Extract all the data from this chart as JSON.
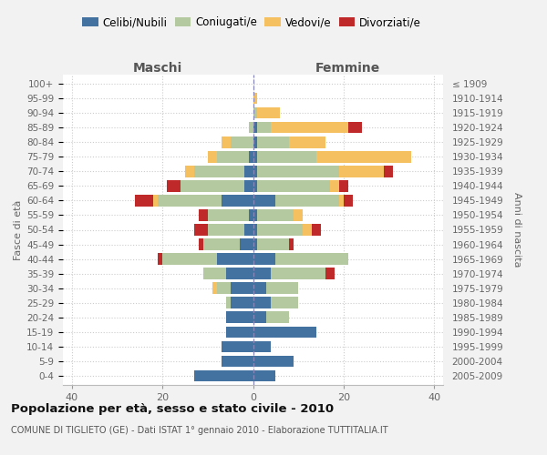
{
  "age_groups": [
    "100+",
    "95-99",
    "90-94",
    "85-89",
    "80-84",
    "75-79",
    "70-74",
    "65-69",
    "60-64",
    "55-59",
    "50-54",
    "45-49",
    "40-44",
    "35-39",
    "30-34",
    "25-29",
    "20-24",
    "15-19",
    "10-14",
    "5-9",
    "0-4"
  ],
  "birth_years": [
    "≤ 1909",
    "1910-1914",
    "1915-1919",
    "1920-1924",
    "1925-1929",
    "1930-1934",
    "1935-1939",
    "1940-1944",
    "1945-1949",
    "1950-1954",
    "1955-1959",
    "1960-1964",
    "1965-1969",
    "1970-1974",
    "1975-1979",
    "1980-1984",
    "1985-1989",
    "1990-1994",
    "1995-1999",
    "2000-2004",
    "2005-2009"
  ],
  "maschi": {
    "celibi": [
      0,
      0,
      0,
      0,
      0,
      1,
      2,
      2,
      7,
      1,
      2,
      3,
      8,
      6,
      5,
      5,
      6,
      6,
      7,
      7,
      13
    ],
    "coniugati": [
      0,
      0,
      0,
      1,
      5,
      7,
      11,
      14,
      14,
      9,
      8,
      8,
      12,
      5,
      3,
      1,
      0,
      0,
      0,
      0,
      0
    ],
    "vedovi": [
      0,
      0,
      0,
      0,
      2,
      2,
      2,
      0,
      1,
      0,
      0,
      0,
      0,
      0,
      1,
      0,
      0,
      0,
      0,
      0,
      0
    ],
    "divorziati": [
      0,
      0,
      0,
      0,
      0,
      0,
      0,
      3,
      4,
      2,
      3,
      1,
      1,
      0,
      0,
      0,
      0,
      0,
      0,
      0,
      0
    ]
  },
  "femmine": {
    "nubili": [
      0,
      0,
      0,
      1,
      1,
      1,
      1,
      1,
      5,
      1,
      1,
      1,
      5,
      4,
      3,
      4,
      3,
      14,
      4,
      9,
      5
    ],
    "coniugate": [
      0,
      0,
      1,
      3,
      7,
      13,
      18,
      16,
      14,
      8,
      10,
      7,
      16,
      12,
      7,
      6,
      5,
      0,
      0,
      0,
      0
    ],
    "vedove": [
      0,
      1,
      5,
      17,
      8,
      21,
      10,
      2,
      1,
      2,
      2,
      0,
      0,
      0,
      0,
      0,
      0,
      0,
      0,
      0,
      0
    ],
    "divorziate": [
      0,
      0,
      0,
      3,
      0,
      0,
      2,
      2,
      2,
      0,
      2,
      1,
      0,
      2,
      0,
      0,
      0,
      0,
      0,
      0,
      0
    ]
  },
  "colors": {
    "celibi": "#4472a0",
    "coniugati": "#b5c9a0",
    "vedovi": "#f5c060",
    "divorziati": "#c0292a"
  },
  "xlim": 42,
  "title": "Popolazione per età, sesso e stato civile - 2010",
  "subtitle": "COMUNE DI TIGLIETO (GE) - Dati ISTAT 1° gennaio 2010 - Elaborazione TUTTITALIA.IT",
  "xlabel_left": "Maschi",
  "xlabel_right": "Femmine",
  "ylabel_left": "Fasce di età",
  "ylabel_right": "Anni di nascita",
  "bg_color": "#f2f2f2",
  "plot_bg": "#ffffff"
}
